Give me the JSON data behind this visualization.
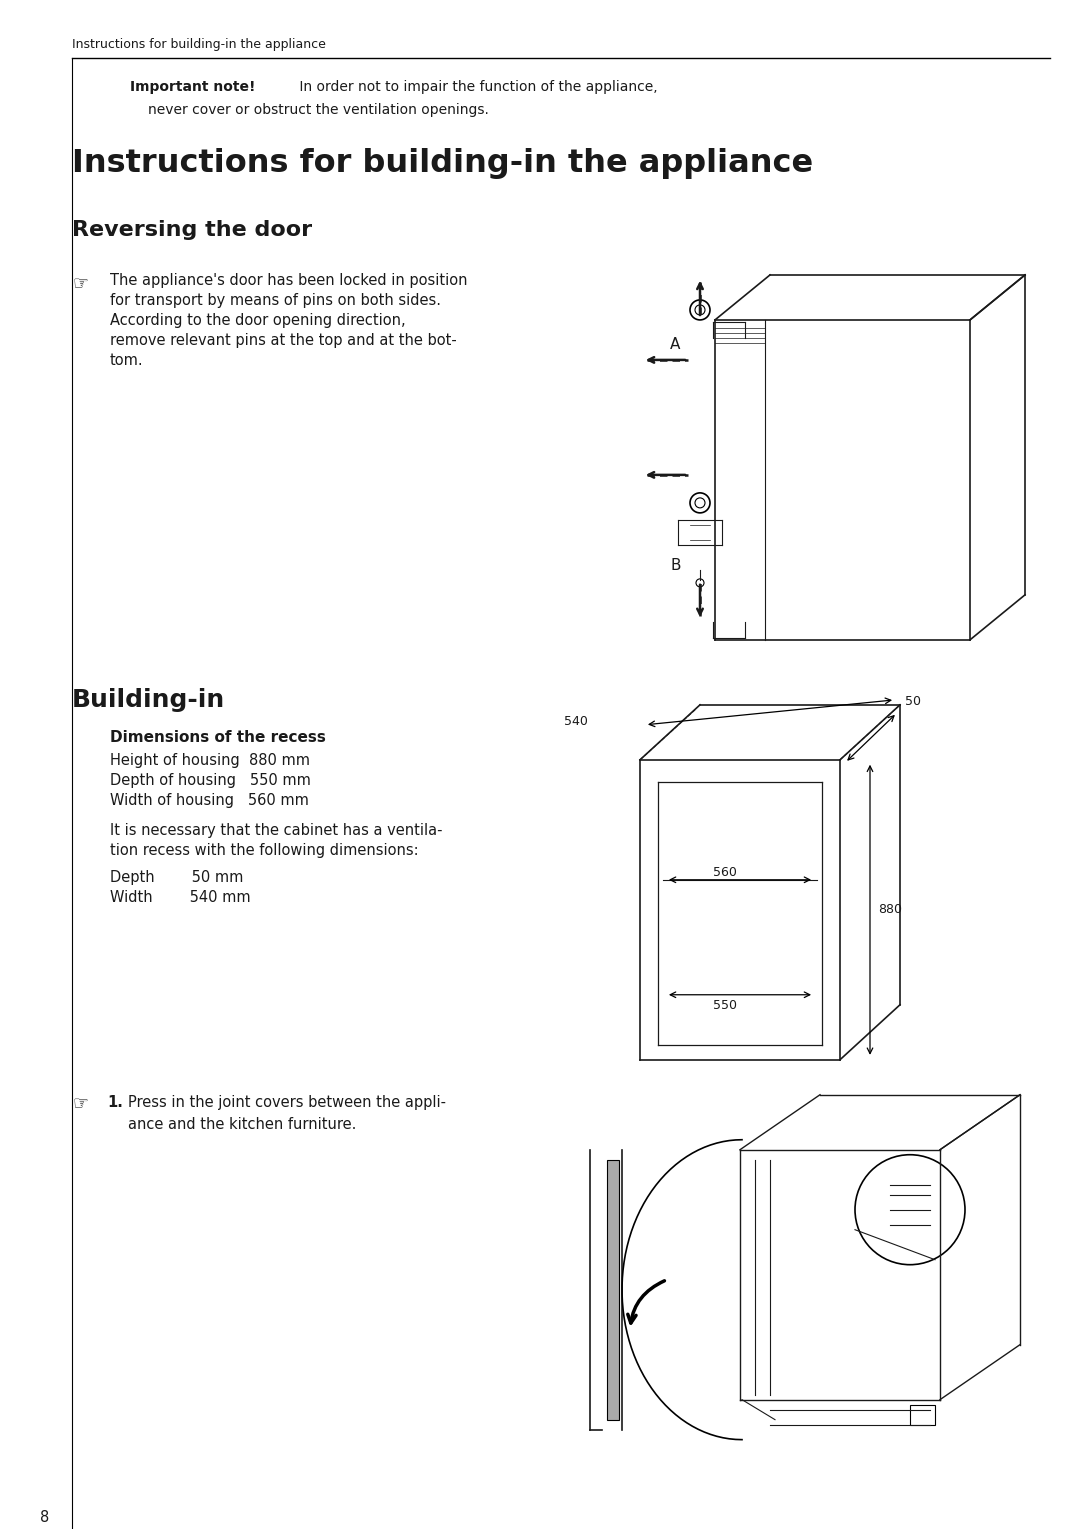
{
  "page_num": "8",
  "header_text": "Instructions for building-in the appliance",
  "main_title": "Instructions for building-in the appliance",
  "section1_title": "Reversing the door",
  "section1_text_line1": "The appliance's door has been locked in position",
  "section1_text_line2": "for transport by means of pins on both sides.",
  "section1_text_line3": "According to the door opening direction,",
  "section1_text_line4": "remove relevant pins at the top and at the bot-",
  "section1_text_line5": "tom.",
  "section2_title": "Building-in",
  "dim_header": "Dimensions of the recess",
  "dim1": "Height of housing  880 mm",
  "dim2": "Depth of housing   550 mm",
  "dim3": "Width of housing   560 mm",
  "vent_line1": "It is necessary that the cabinet has a ventila-",
  "vent_line2": "tion recess with the following dimensions:",
  "depth_line": "Depth        50 mm",
  "width_line": "Width        540 mm",
  "step1_num": "1.",
  "step1_line1": "Press in the joint covers between the appli-",
  "step1_line2": "ance and the kitchen furniture.",
  "bg_color": "#ffffff",
  "text_color": "#1a1a1a",
  "line_color": "#000000"
}
